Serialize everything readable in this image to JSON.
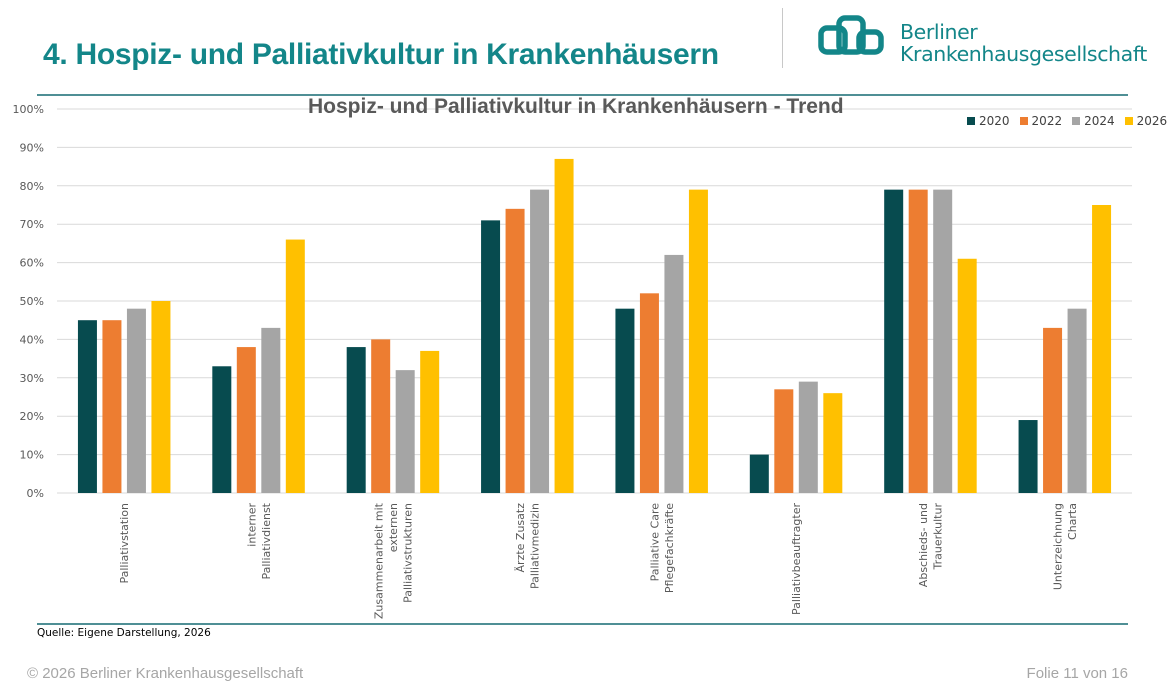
{
  "slide": {
    "title": "4. Hospiz- und Palliativkultur in Krankenhäusern",
    "brand_color": "#138689",
    "logo": {
      "line1": "Berliner",
      "line2": "Krankenhausgesellschaft"
    },
    "source": "Quelle: Eigene Darstellung, 2026",
    "copyright": "© 2026 Berliner Krankenhausgesellschaft",
    "page_indicator": "Folie 11 von 16"
  },
  "chart_data": {
    "type": "bar",
    "title": "Hospiz- und Palliativkultur in Krankenhäusern - Trend",
    "xlabel": "",
    "ylabel": "",
    "ylim": [
      0,
      100
    ],
    "y_ticks": [
      "0%",
      "10%",
      "20%",
      "30%",
      "40%",
      "50%",
      "60%",
      "70%",
      "80%",
      "90%",
      "100%"
    ],
    "grid": true,
    "legend_position": "top-right",
    "categories": [
      [
        "Palliativstation"
      ],
      [
        "interner",
        "Palliativdienst"
      ],
      [
        "Zusammenarbeit mit",
        "externen",
        "Palliativstrukturen"
      ],
      [
        "Ärzte Zusatz",
        "Palliativmedizin"
      ],
      [
        "Palliative Care",
        "Pflegefachkräfte"
      ],
      [
        "Palliativbeauftragter"
      ],
      [
        "Abschieds- und",
        "Trauerkultur"
      ],
      [
        "Unterzeichnung",
        "Charta"
      ]
    ],
    "series": [
      {
        "name": "2020",
        "color": "#074B4F",
        "values": [
          45,
          33,
          38,
          71,
          48,
          10,
          79,
          19
        ]
      },
      {
        "name": "2022",
        "color": "#ED7D31",
        "values": [
          45,
          38,
          40,
          74,
          52,
          27,
          79,
          43
        ]
      },
      {
        "name": "2024",
        "color": "#A5A5A5",
        "values": [
          48,
          43,
          32,
          79,
          62,
          29,
          79,
          48
        ]
      },
      {
        "name": "2026",
        "color": "#FFC000",
        "values": [
          50,
          66,
          37,
          87,
          79,
          26,
          61,
          75
        ]
      }
    ]
  }
}
